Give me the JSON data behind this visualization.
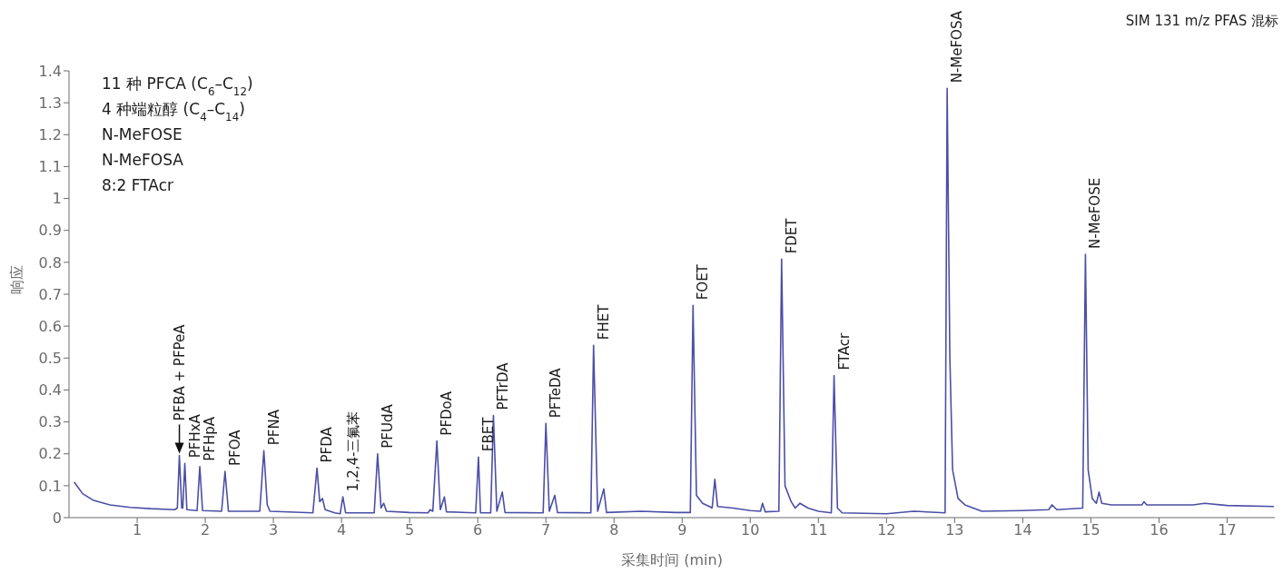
{
  "chart_data": {
    "type": "line",
    "title": "SIM 131 m/z PFAS 混标",
    "xlabel": "采集时间 (min)",
    "ylabel": "响应",
    "color": "#4b4fa6",
    "xlim": [
      0,
      17.7
    ],
    "xticks": [
      1,
      2,
      3,
      4,
      5,
      6,
      7,
      8,
      9,
      10,
      11,
      12,
      13,
      14,
      15,
      16,
      17
    ],
    "ylim": [
      0,
      1.4
    ],
    "yticks": [
      0,
      0.1,
      0.2,
      0.3,
      0.4,
      0.5,
      0.6,
      0.7,
      0.8,
      0.9,
      1.0,
      1.1,
      1.2,
      1.3,
      1.4
    ],
    "x": [
      0.08,
      0.2,
      0.35,
      0.6,
      0.9,
      1.2,
      1.55,
      1.59,
      1.62,
      1.655,
      1.67,
      1.7,
      1.73,
      1.88,
      1.92,
      1.96,
      2.24,
      2.29,
      2.34,
      2.8,
      2.86,
      2.91,
      2.95,
      3.58,
      3.64,
      3.68,
      3.72,
      3.76,
      3.9,
      3.98,
      4.02,
      4.06,
      4.48,
      4.53,
      4.58,
      4.62,
      4.66,
      5.0,
      5.27,
      5.3,
      5.34,
      5.4,
      5.45,
      5.51,
      5.54,
      5.97,
      6.01,
      6.04,
      6.19,
      6.23,
      6.28,
      6.36,
      6.4,
      6.96,
      7.0,
      7.05,
      7.13,
      7.17,
      7.66,
      7.7,
      7.76,
      7.85,
      7.89,
      8.4,
      8.9,
      9.12,
      9.16,
      9.21,
      9.3,
      9.4,
      9.44,
      9.48,
      9.52,
      9.75,
      10.0,
      10.15,
      10.18,
      10.22,
      10.42,
      10.46,
      10.51,
      10.6,
      10.66,
      10.73,
      10.85,
      11.0,
      11.19,
      11.23,
      11.28,
      11.35,
      12.0,
      12.4,
      12.86,
      12.89,
      12.93,
      12.97,
      13.05,
      13.15,
      13.4,
      14.0,
      14.38,
      14.43,
      14.5,
      14.88,
      14.92,
      14.96,
      15.02,
      15.08,
      15.12,
      15.16,
      15.3,
      15.75,
      15.78,
      15.82,
      16.5,
      16.67,
      17.0,
      17.68
    ],
    "values": [
      0.11,
      0.075,
      0.055,
      0.04,
      0.032,
      0.028,
      0.025,
      0.03,
      0.195,
      0.03,
      0.03,
      0.17,
      0.025,
      0.022,
      0.16,
      0.022,
      0.02,
      0.145,
      0.02,
      0.02,
      0.21,
      0.04,
      0.02,
      0.015,
      0.155,
      0.05,
      0.06,
      0.025,
      0.015,
      0.012,
      0.065,
      0.015,
      0.015,
      0.2,
      0.03,
      0.045,
      0.02,
      0.016,
      0.015,
      0.025,
      0.02,
      0.24,
      0.025,
      0.065,
      0.018,
      0.015,
      0.19,
      0.015,
      0.015,
      0.32,
      0.02,
      0.08,
      0.016,
      0.015,
      0.295,
      0.02,
      0.07,
      0.016,
      0.015,
      0.54,
      0.02,
      0.09,
      0.016,
      0.02,
      0.016,
      0.016,
      0.665,
      0.07,
      0.045,
      0.035,
      0.03,
      0.12,
      0.035,
      0.03,
      0.022,
      0.02,
      0.045,
      0.018,
      0.02,
      0.81,
      0.1,
      0.05,
      0.03,
      0.045,
      0.03,
      0.02,
      0.015,
      0.445,
      0.03,
      0.015,
      0.012,
      0.02,
      0.015,
      1.345,
      0.5,
      0.15,
      0.06,
      0.04,
      0.02,
      0.022,
      0.025,
      0.04,
      0.025,
      0.03,
      0.825,
      0.15,
      0.06,
      0.045,
      0.08,
      0.045,
      0.04,
      0.04,
      0.05,
      0.04,
      0.04,
      0.045,
      0.038,
      0.035
    ],
    "annotations": [
      {
        "text": "PFBA + PFPeA",
        "x": 1.62,
        "y": 0.195
      },
      {
        "text": "PFHxA",
        "x": 1.7,
        "y": 0.17
      },
      {
        "text": "PFHpA",
        "x": 1.92,
        "y": 0.16
      },
      {
        "text": "PFOA",
        "x": 2.29,
        "y": 0.145
      },
      {
        "text": "PFNA",
        "x": 2.86,
        "y": 0.21
      },
      {
        "text": "PFDA",
        "x": 3.64,
        "y": 0.155
      },
      {
        "text": "1,2,4-三氟苯",
        "x": 4.02,
        "y": 0.065
      },
      {
        "text": "PFUdA",
        "x": 4.53,
        "y": 0.2
      },
      {
        "text": "PFDoA",
        "x": 5.4,
        "y": 0.24
      },
      {
        "text": "FBET",
        "x": 6.01,
        "y": 0.19
      },
      {
        "text": "PFTrDA",
        "x": 6.23,
        "y": 0.32
      },
      {
        "text": "PFTeDA",
        "x": 7.0,
        "y": 0.295
      },
      {
        "text": "FHET",
        "x": 7.7,
        "y": 0.54
      },
      {
        "text": "FOET",
        "x": 9.16,
        "y": 0.665
      },
      {
        "text": "FDET",
        "x": 10.46,
        "y": 0.81
      },
      {
        "text": "FTAcr",
        "x": 11.23,
        "y": 0.445
      },
      {
        "text": "N-MeFOSA",
        "x": 12.89,
        "y": 1.345
      },
      {
        "text": "N-MeFOSE",
        "x": 14.92,
        "y": 0.825
      },
      "11 种 PFCA (C$_{6}$–C$_{12}$)",
      "4 种端粒醇 (C$_{4}$–C$_{14}$)",
      "N-MeFOSE",
      "N-MeFOSA",
      "8:2 FTAcr"
    ]
  }
}
